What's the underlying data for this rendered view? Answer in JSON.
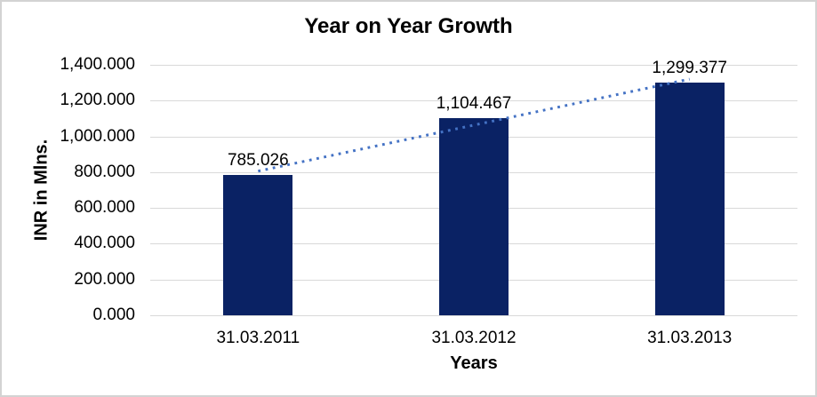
{
  "window": {
    "background_color": "#ffffff",
    "border_color": "#d3d3d3"
  },
  "chart_data": {
    "type": "bar",
    "title": "Year on Year Growth",
    "xlabel": "Years",
    "ylabel": "INR in Mlns.",
    "categories": [
      "31.03.2011",
      "31.03.2012",
      "31.03.2013"
    ],
    "values": [
      785.026,
      1104.467,
      1299.377
    ],
    "data_labels": [
      "785.026",
      "1,104.467",
      "1,299.377"
    ],
    "ylim": [
      0,
      1400
    ],
    "ytick_step": 200,
    "ytick_labels": [
      "0.000",
      "200.000",
      "400.000",
      "600.000",
      "800.000",
      "1,000.000",
      "1,200.000",
      "1,400.000"
    ],
    "grid": true,
    "legend": false,
    "bar_color": "#0a2264",
    "gridline_color": "#d9d9d9",
    "text_color": "#000000",
    "trendline": {
      "kind": "linear",
      "style": "dotted",
      "color": "#4472c4"
    }
  }
}
